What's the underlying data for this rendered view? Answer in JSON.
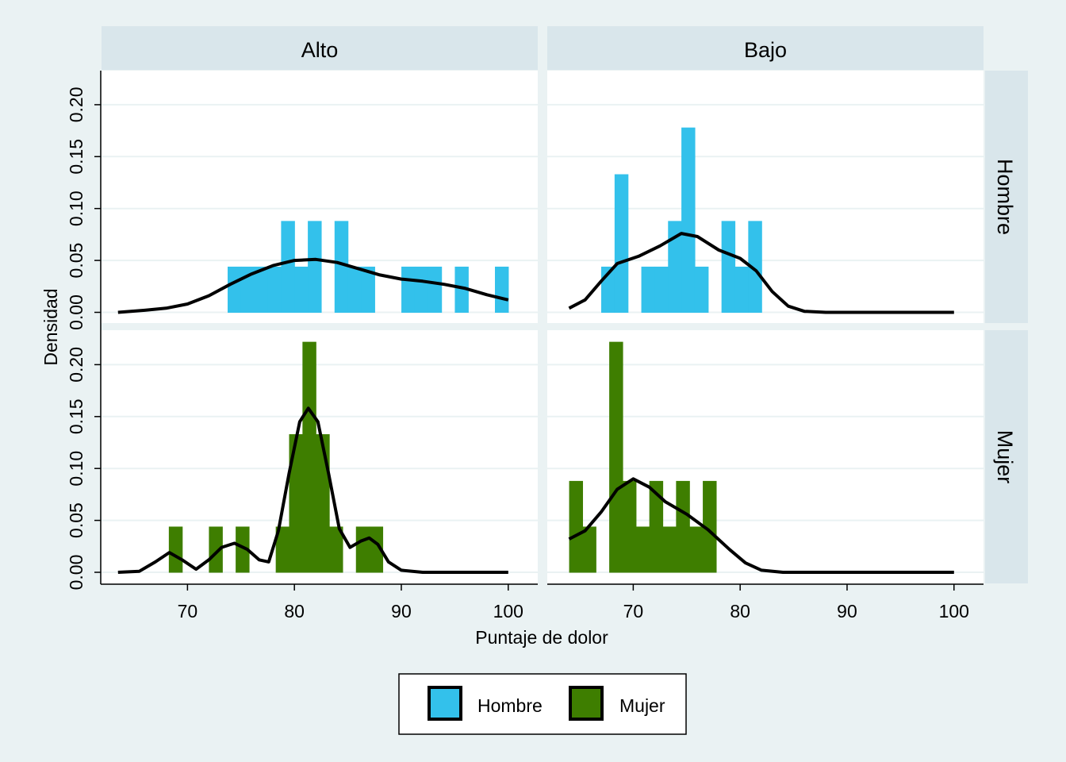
{
  "chart_data": {
    "type": "bar",
    "xlabel": "Puntaje de dolor",
    "ylabel": "Densidad",
    "xlim": [
      61.5,
      102.5
    ],
    "ylim": [
      0,
      0.225
    ],
    "xticks": [
      "70",
      "80",
      "90",
      "100"
    ],
    "yticks": [
      "0.00",
      "0.05",
      "0.10",
      "0.15",
      "0.20"
    ],
    "grid": true,
    "bin_width": 1.25,
    "columns": [
      "Alto",
      "Bajo"
    ],
    "rows": [
      "Hombre",
      "Mujer"
    ],
    "legend": {
      "placement": "bottom",
      "items": [
        {
          "label": "Hombre",
          "color": "#33c1eb"
        },
        {
          "label": "Mujer",
          "color": "#3e7e00"
        }
      ]
    },
    "panels": [
      {
        "column": "Alto",
        "row": "Hombre",
        "color": "#33c1eb",
        "bars": [
          {
            "x": 74.38,
            "y": 0.044
          },
          {
            "x": 75.63,
            "y": 0.044
          },
          {
            "x": 76.88,
            "y": 0.044
          },
          {
            "x": 78.13,
            "y": 0.044
          },
          {
            "x": 79.38,
            "y": 0.088
          },
          {
            "x": 80.63,
            "y": 0.044
          },
          {
            "x": 81.88,
            "y": 0.088
          },
          {
            "x": 84.38,
            "y": 0.088
          },
          {
            "x": 85.63,
            "y": 0.044
          },
          {
            "x": 86.88,
            "y": 0.044
          },
          {
            "x": 90.63,
            "y": 0.044
          },
          {
            "x": 91.88,
            "y": 0.044
          },
          {
            "x": 93.13,
            "y": 0.044
          },
          {
            "x": 95.63,
            "y": 0.044
          },
          {
            "x": 99.38,
            "y": 0.044
          }
        ],
        "density": [
          [
            63.5,
            0.0
          ],
          [
            66,
            0.002
          ],
          [
            68,
            0.004
          ],
          [
            70,
            0.008
          ],
          [
            72,
            0.016
          ],
          [
            74,
            0.027
          ],
          [
            76,
            0.037
          ],
          [
            78,
            0.045
          ],
          [
            80,
            0.05
          ],
          [
            82,
            0.051
          ],
          [
            84,
            0.048
          ],
          [
            86,
            0.042
          ],
          [
            88,
            0.036
          ],
          [
            90,
            0.032
          ],
          [
            92,
            0.03
          ],
          [
            94,
            0.027
          ],
          [
            96,
            0.023
          ],
          [
            98,
            0.017
          ],
          [
            100,
            0.012
          ]
        ]
      },
      {
        "column": "Bajo",
        "row": "Hombre",
        "color": "#33c1eb",
        "bars": [
          {
            "x": 67.63,
            "y": 0.044
          },
          {
            "x": 68.88,
            "y": 0.133
          },
          {
            "x": 71.38,
            "y": 0.044
          },
          {
            "x": 72.63,
            "y": 0.044
          },
          {
            "x": 73.88,
            "y": 0.088
          },
          {
            "x": 75.13,
            "y": 0.178
          },
          {
            "x": 76.38,
            "y": 0.044
          },
          {
            "x": 78.88,
            "y": 0.088
          },
          {
            "x": 80.13,
            "y": 0.044
          },
          {
            "x": 81.38,
            "y": 0.088
          }
        ],
        "density": [
          [
            64,
            0.004
          ],
          [
            65.5,
            0.012
          ],
          [
            67,
            0.03
          ],
          [
            68.5,
            0.047
          ],
          [
            70.5,
            0.054
          ],
          [
            72.5,
            0.064
          ],
          [
            74.5,
            0.076
          ],
          [
            76,
            0.073
          ],
          [
            78,
            0.06
          ],
          [
            80,
            0.052
          ],
          [
            81.5,
            0.04
          ],
          [
            83,
            0.02
          ],
          [
            84.5,
            0.006
          ],
          [
            86,
            0.001
          ],
          [
            88,
            0.0
          ],
          [
            90,
            0.0
          ],
          [
            95,
            0.0
          ],
          [
            100,
            0.0
          ]
        ]
      },
      {
        "column": "Alto",
        "row": "Mujer",
        "color": "#3e7e00",
        "bars": [
          {
            "x": 68.88,
            "y": 0.044
          },
          {
            "x": 72.63,
            "y": 0.044
          },
          {
            "x": 75.13,
            "y": 0.044
          },
          {
            "x": 78.88,
            "y": 0.044
          },
          {
            "x": 80.13,
            "y": 0.133
          },
          {
            "x": 81.38,
            "y": 0.222
          },
          {
            "x": 82.63,
            "y": 0.133
          },
          {
            "x": 83.88,
            "y": 0.044
          },
          {
            "x": 86.38,
            "y": 0.044
          },
          {
            "x": 87.63,
            "y": 0.044
          }
        ],
        "density": [
          [
            63.5,
            0.0
          ],
          [
            65.5,
            0.001
          ],
          [
            67,
            0.01
          ],
          [
            68.3,
            0.019
          ],
          [
            69.5,
            0.012
          ],
          [
            70.8,
            0.003
          ],
          [
            72,
            0.012
          ],
          [
            73.2,
            0.024
          ],
          [
            74.4,
            0.028
          ],
          [
            75.6,
            0.022
          ],
          [
            76.7,
            0.012
          ],
          [
            77.6,
            0.01
          ],
          [
            78.5,
            0.04
          ],
          [
            79.5,
            0.095
          ],
          [
            80.5,
            0.145
          ],
          [
            81.3,
            0.158
          ],
          [
            82.2,
            0.145
          ],
          [
            83.2,
            0.095
          ],
          [
            84.2,
            0.042
          ],
          [
            85.2,
            0.024
          ],
          [
            86.2,
            0.03
          ],
          [
            87,
            0.033
          ],
          [
            87.8,
            0.027
          ],
          [
            88.8,
            0.01
          ],
          [
            90,
            0.002
          ],
          [
            92,
            0.0
          ],
          [
            96,
            0.0
          ],
          [
            100,
            0.0
          ]
        ]
      },
      {
        "column": "Bajo",
        "row": "Mujer",
        "color": "#3e7e00",
        "bars": [
          {
            "x": 64.63,
            "y": 0.088
          },
          {
            "x": 65.88,
            "y": 0.044
          },
          {
            "x": 68.38,
            "y": 0.222
          },
          {
            "x": 69.63,
            "y": 0.088
          },
          {
            "x": 70.88,
            "y": 0.044
          },
          {
            "x": 72.13,
            "y": 0.088
          },
          {
            "x": 73.38,
            "y": 0.044
          },
          {
            "x": 74.63,
            "y": 0.088
          },
          {
            "x": 75.88,
            "y": 0.044
          },
          {
            "x": 77.13,
            "y": 0.088
          }
        ],
        "density": [
          [
            64,
            0.032
          ],
          [
            65.5,
            0.04
          ],
          [
            67,
            0.058
          ],
          [
            68.5,
            0.08
          ],
          [
            70,
            0.09
          ],
          [
            71.5,
            0.082
          ],
          [
            73,
            0.068
          ],
          [
            75,
            0.056
          ],
          [
            77,
            0.041
          ],
          [
            79,
            0.022
          ],
          [
            80.5,
            0.009
          ],
          [
            82,
            0.002
          ],
          [
            84,
            0.0
          ],
          [
            86,
            0.0
          ],
          [
            90,
            0.0
          ],
          [
            95,
            0.0
          ],
          [
            100,
            0.0
          ]
        ]
      }
    ]
  }
}
